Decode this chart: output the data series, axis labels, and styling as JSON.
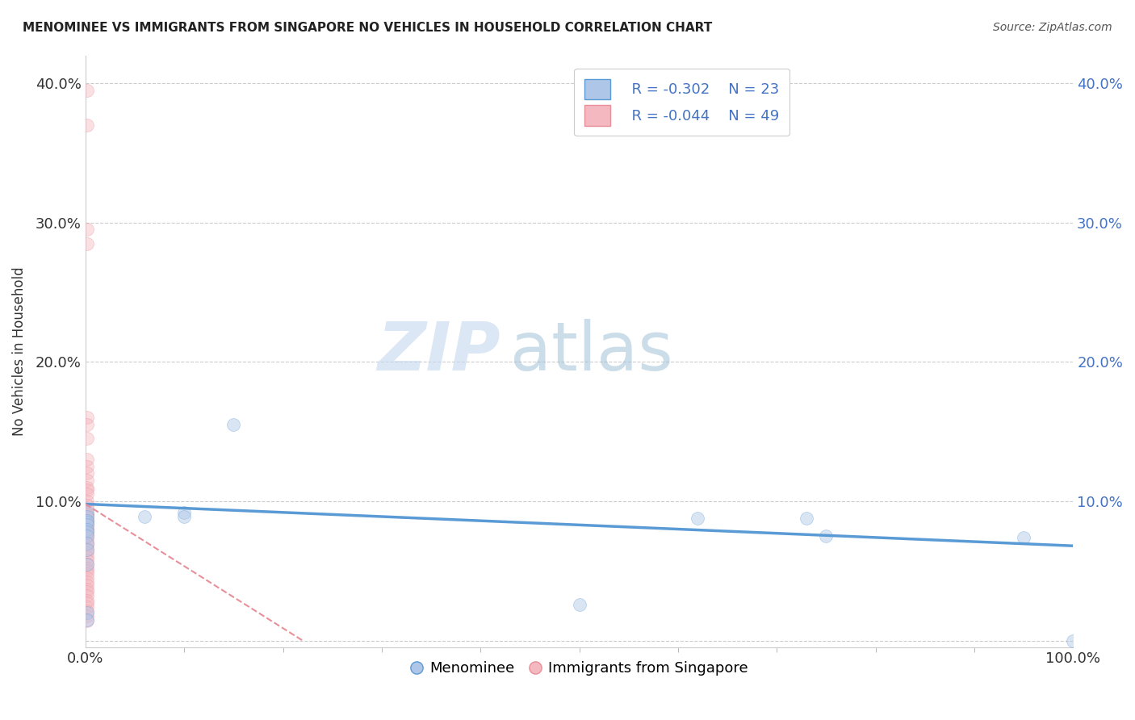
{
  "title": "MENOMINEE VS IMMIGRANTS FROM SINGAPORE NO VEHICLES IN HOUSEHOLD CORRELATION CHART",
  "source_text": "Source: ZipAtlas.com",
  "ylabel": "No Vehicles in Household",
  "watermark_zip": "ZIP",
  "watermark_atlas": "atlas",
  "blue_scatter_x": [
    0.002,
    0.002,
    0.002,
    0.002,
    0.002,
    0.002,
    0.002,
    0.002,
    0.002,
    0.002,
    0.002,
    0.06,
    0.1,
    0.1,
    0.15,
    0.5,
    0.62,
    0.73,
    0.75,
    0.95,
    1.0,
    0.002,
    0.002
  ],
  "blue_scatter_y": [
    0.092,
    0.089,
    0.086,
    0.085,
    0.083,
    0.08,
    0.078,
    0.075,
    0.07,
    0.065,
    0.055,
    0.089,
    0.092,
    0.089,
    0.155,
    0.026,
    0.088,
    0.088,
    0.075,
    0.074,
    0.0,
    0.02,
    0.015
  ],
  "pink_scatter_x": [
    0.002,
    0.002,
    0.002,
    0.002,
    0.002,
    0.002,
    0.002,
    0.002,
    0.002,
    0.002,
    0.002,
    0.002,
    0.002,
    0.002,
    0.002,
    0.002,
    0.002,
    0.002,
    0.002,
    0.002,
    0.002,
    0.002,
    0.002,
    0.002,
    0.002,
    0.002,
    0.002,
    0.002,
    0.002,
    0.002,
    0.002,
    0.002,
    0.002,
    0.002,
    0.002,
    0.002,
    0.002,
    0.002,
    0.002,
    0.002,
    0.002,
    0.002,
    0.002,
    0.002,
    0.002,
    0.002,
    0.002,
    0.002,
    0.002
  ],
  "pink_scatter_y": [
    0.395,
    0.37,
    0.295,
    0.285,
    0.16,
    0.155,
    0.145,
    0.13,
    0.125,
    0.12,
    0.115,
    0.11,
    0.108,
    0.105,
    0.1,
    0.097,
    0.094,
    0.091,
    0.09,
    0.088,
    0.086,
    0.083,
    0.081,
    0.079,
    0.077,
    0.075,
    0.073,
    0.07,
    0.068,
    0.065,
    0.063,
    0.06,
    0.058,
    0.055,
    0.052,
    0.05,
    0.048,
    0.045,
    0.042,
    0.04,
    0.037,
    0.035,
    0.032,
    0.029,
    0.027,
    0.024,
    0.021,
    0.018,
    0.014
  ],
  "blue_line_x": [
    0.0,
    1.0
  ],
  "blue_line_y": [
    0.098,
    0.068
  ],
  "pink_line_x": [
    0.0,
    0.22
  ],
  "pink_line_y": [
    0.098,
    0.0
  ],
  "xlim": [
    0.0,
    1.0
  ],
  "ylim": [
    -0.005,
    0.42
  ],
  "yticks": [
    0.0,
    0.1,
    0.2,
    0.3,
    0.4
  ],
  "ytick_labels": [
    "",
    "10.0%",
    "20.0%",
    "30.0%",
    "40.0%"
  ],
  "xticks": [
    0.0,
    1.0
  ],
  "xtick_labels": [
    "0.0%",
    "100.0%"
  ],
  "grid_yticks": [
    0.0,
    0.1,
    0.2,
    0.3,
    0.4
  ],
  "grid_color": "#cccccc",
  "scatter_size": 130,
  "scatter_alpha": 0.45,
  "blue_color": "#5b9bd5",
  "blue_fill": "#aec6e8",
  "pink_edge_color": "#e8909a",
  "pink_fill": "#f4b8c1",
  "legend_text_color": "#4472c4",
  "background_color": "#ffffff",
  "R_blue": "-0.302",
  "N_blue": "23",
  "R_pink": "-0.044",
  "N_pink": "49",
  "label_menominee": "Menominee",
  "label_singapore": "Immigrants from Singapore"
}
